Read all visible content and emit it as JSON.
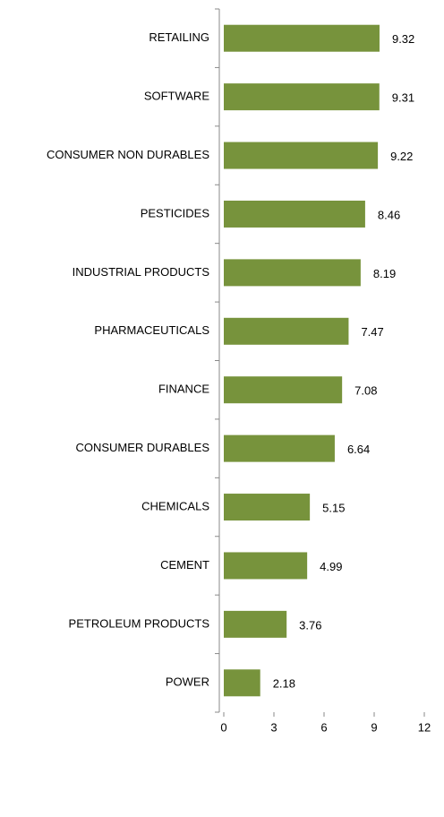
{
  "chart_data": {
    "type": "bar",
    "orientation": "horizontal",
    "categories": [
      "RETAILING",
      "SOFTWARE",
      "CONSUMER NON DURABLES",
      "PESTICIDES",
      "INDUSTRIAL PRODUCTS",
      "PHARMACEUTICALS",
      "FINANCE",
      "CONSUMER DURABLES",
      "CHEMICALS",
      "CEMENT",
      "PETROLEUM PRODUCTS",
      "POWER"
    ],
    "values": [
      9.32,
      9.31,
      9.22,
      8.46,
      8.19,
      7.47,
      7.08,
      6.64,
      5.15,
      4.99,
      3.76,
      2.18
    ],
    "color": "#77933c",
    "xlim": [
      0,
      12
    ],
    "xticks": [
      0,
      3,
      6,
      9,
      12
    ],
    "grid": false
  }
}
